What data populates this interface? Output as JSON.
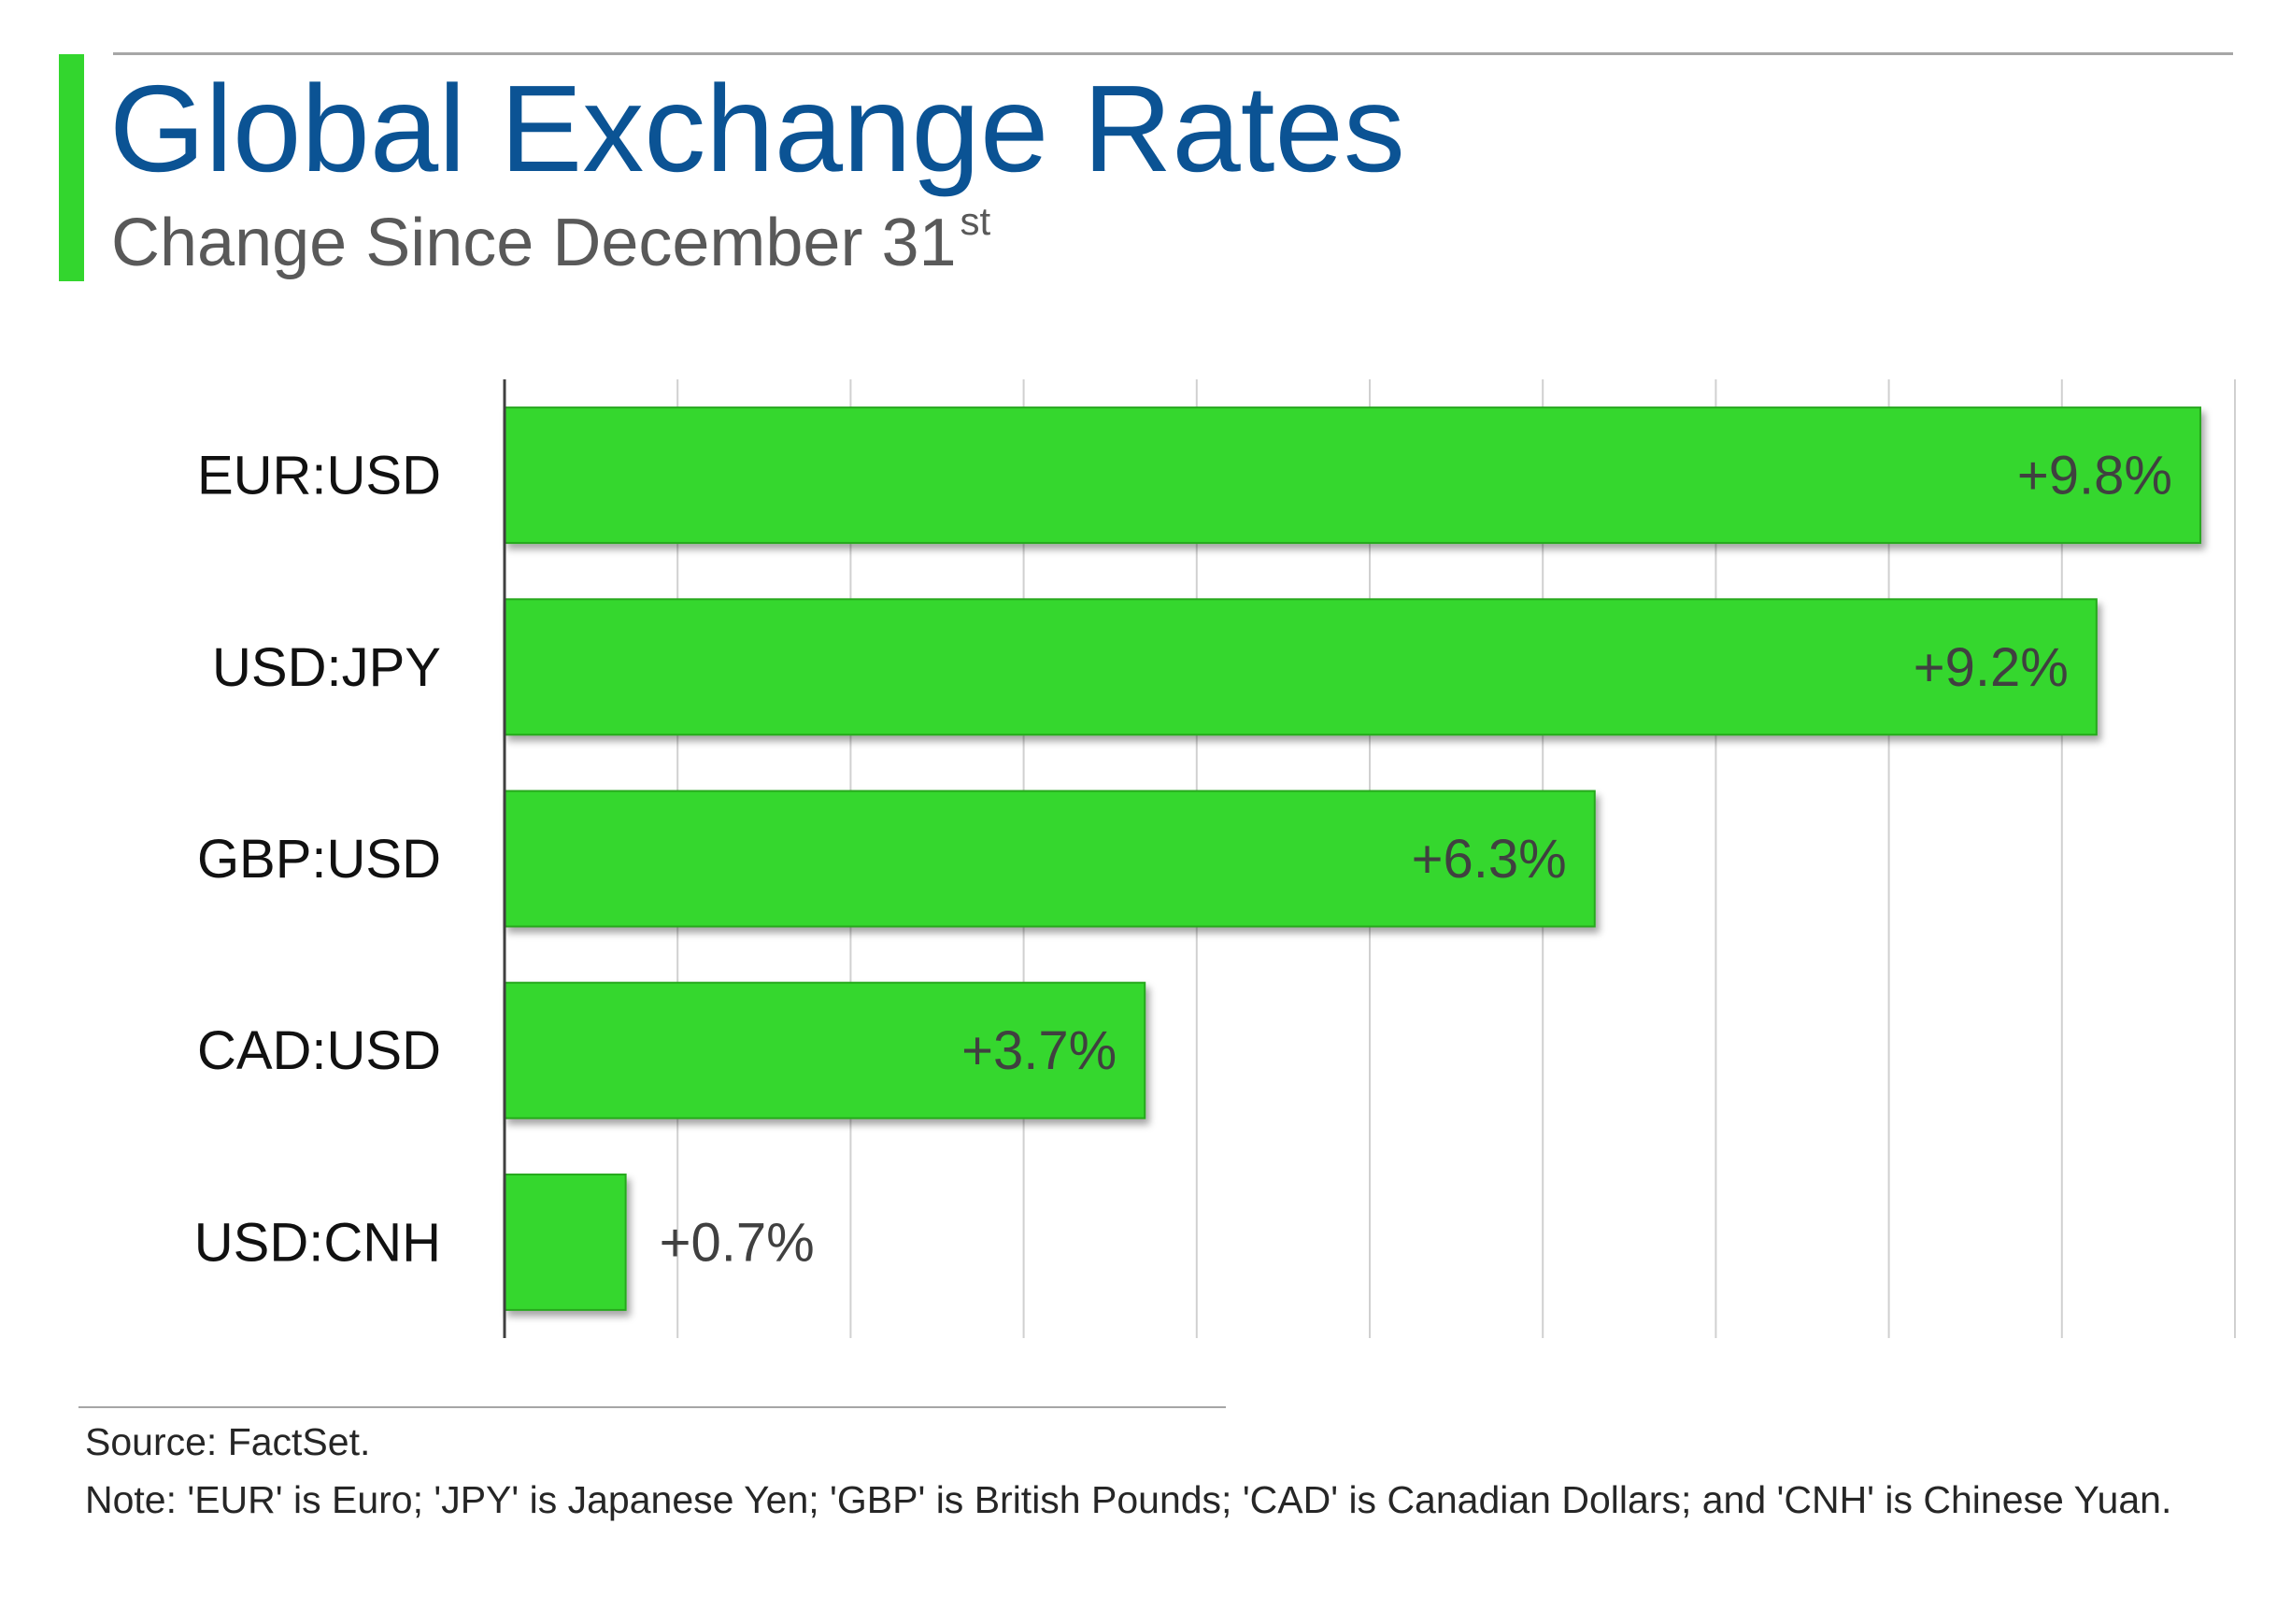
{
  "header": {
    "title": "Global Exchange Rates",
    "subtitle": "Change Since December 31",
    "subtitle_superscript": "st"
  },
  "colors": {
    "accent": "#33d62e",
    "bar_fill": "#36d72e",
    "bar_stroke": "#25a81f",
    "title": "#0b5394",
    "subtitle": "#595959",
    "gridline": "#d0d0d0",
    "axis": "#404040",
    "label_text": "#111111",
    "value_text": "#404040"
  },
  "chart_data": {
    "type": "bar",
    "orientation": "horizontal",
    "categories": [
      "EUR:USD",
      "USD:JPY",
      "GBP:USD",
      "CAD:USD",
      "USD:CNH"
    ],
    "values": [
      9.8,
      9.2,
      6.3,
      3.7,
      0.7
    ],
    "value_labels": [
      "+9.8%",
      "+9.2%",
      "+6.3%",
      "+3.7%",
      "+0.7%"
    ],
    "xlim": [
      0,
      10
    ],
    "grid": true,
    "legend": "none"
  },
  "footer": {
    "source": "Source: FactSet.",
    "note": "Note: 'EUR' is Euro; 'JPY' is Japanese Yen; 'GBP' is British Pounds; 'CAD' is Canadian Dollars; and 'CNH' is Chinese Yuan."
  }
}
